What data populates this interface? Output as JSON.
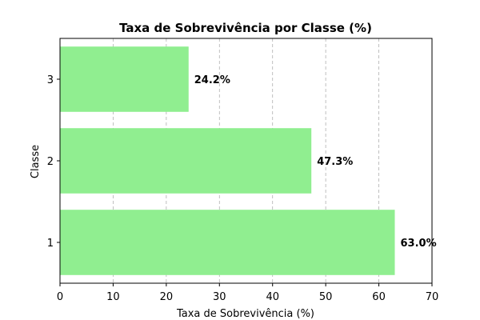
{
  "chart_data": {
    "type": "bar",
    "orientation": "horizontal",
    "title": "Taxa de Sobrevivência por Classe (%)",
    "xlabel": "Taxa de Sobrevivência (%)",
    "ylabel": "Classe",
    "categories": [
      "1",
      "2",
      "3"
    ],
    "values": [
      63.0,
      47.3,
      24.2
    ],
    "data_labels": [
      "63.0%",
      "47.3%",
      "24.2%"
    ],
    "xlim": [
      0,
      70
    ],
    "xticks": [
      0,
      10,
      20,
      30,
      40,
      50,
      60,
      70
    ],
    "grid": "x-axis dashed",
    "bar_color": "#90ee90"
  }
}
